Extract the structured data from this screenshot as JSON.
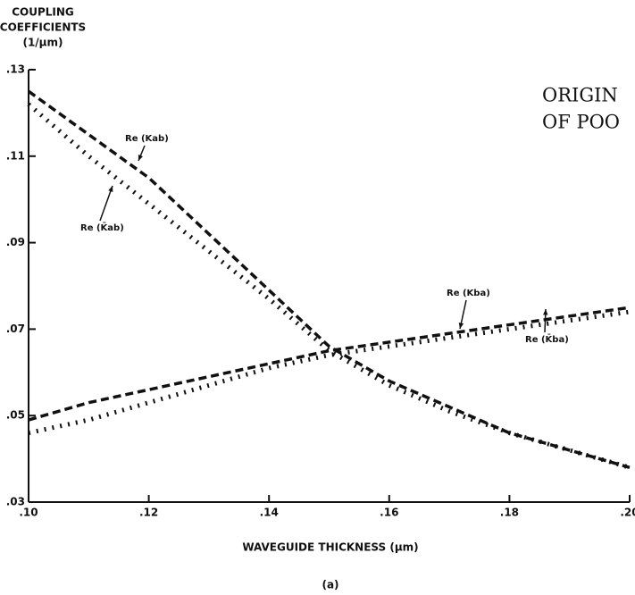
{
  "chart_data": {
    "type": "line",
    "y_label": [
      "COUPLING",
      "COEFFICIENTS",
      "(1/μm)"
    ],
    "x_label": "WAVEGUIDE THICKNESS (μm)",
    "caption": "(a)",
    "stamp": [
      "ORIGIN",
      "OF POO"
    ],
    "x": [
      0.1,
      0.11,
      0.12,
      0.13,
      0.14,
      0.15,
      0.16,
      0.17,
      0.18,
      0.19,
      0.2
    ],
    "series": [
      {
        "name": "Re (Kab)",
        "color": "#111111",
        "style": "dashed",
        "values": [
          0.125,
          0.115,
          0.105,
          0.092,
          0.079,
          0.066,
          0.058,
          0.052,
          0.046,
          0.042,
          0.038
        ]
      },
      {
        "name": "Re (K̄ab)",
        "color": "#111111",
        "style": "dotted",
        "values": [
          0.122,
          0.11,
          0.099,
          0.088,
          0.077,
          0.065,
          0.057,
          0.051,
          0.046,
          0.042,
          0.038
        ]
      },
      {
        "name": "Re (Kba)",
        "color": "#111111",
        "style": "dashed",
        "values": [
          0.049,
          0.053,
          0.056,
          0.059,
          0.062,
          0.065,
          0.067,
          0.069,
          0.071,
          0.073,
          0.075
        ]
      },
      {
        "name": "Re (K̄ba)",
        "color": "#111111",
        "style": "dotted",
        "values": [
          0.046,
          0.049,
          0.053,
          0.057,
          0.061,
          0.064,
          0.066,
          0.068,
          0.07,
          0.072,
          0.074
        ]
      }
    ],
    "xlim": [
      0.1,
      0.2
    ],
    "ylim": [
      0.03,
      0.13
    ],
    "xticks": [
      {
        "value": 0.1,
        "label": ".10"
      },
      {
        "value": 0.12,
        "label": ".12"
      },
      {
        "value": 0.14,
        "label": ".14"
      },
      {
        "value": 0.16,
        "label": ".16"
      },
      {
        "value": 0.18,
        "label": ".18"
      },
      {
        "value": 0.2,
        "label": ".20"
      }
    ],
    "yticks": [
      {
        "value": 0.03,
        "label": ".03"
      },
      {
        "value": 0.05,
        "label": ".05"
      },
      {
        "value": 0.07,
        "label": ".07"
      },
      {
        "value": 0.09,
        "label": ".09"
      },
      {
        "value": 0.11,
        "label": ".11"
      },
      {
        "value": 0.13,
        "label": ".13"
      }
    ],
    "grid": false
  }
}
